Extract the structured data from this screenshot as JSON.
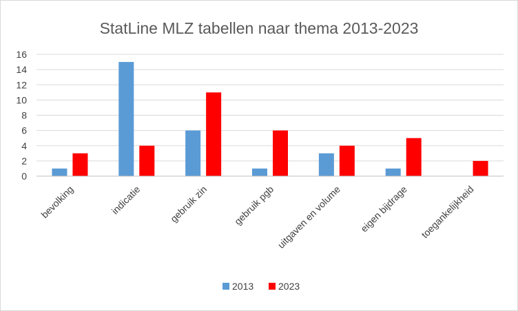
{
  "chart_data": {
    "type": "bar",
    "title": "StatLine MLZ tabellen naar thema 2013-2023",
    "categories": [
      "bevolking",
      "indicatie",
      "gebruik zin",
      "gebruik pgb",
      "uitgaven en volume",
      "eigen bijdrage",
      "toegankelijkheid"
    ],
    "series": [
      {
        "name": "2013",
        "color": "#5b9bd5",
        "values": [
          1,
          15,
          6,
          1,
          3,
          1,
          0
        ]
      },
      {
        "name": "2023",
        "color": "#ff0000",
        "values": [
          3,
          4,
          11,
          6,
          4,
          5,
          2
        ]
      }
    ],
    "yticks": [
      "0",
      "2",
      "4",
      "6",
      "8",
      "10",
      "12",
      "14",
      "16"
    ],
    "ylim": [
      0,
      16
    ],
    "grid": true,
    "legend": "bottom"
  }
}
